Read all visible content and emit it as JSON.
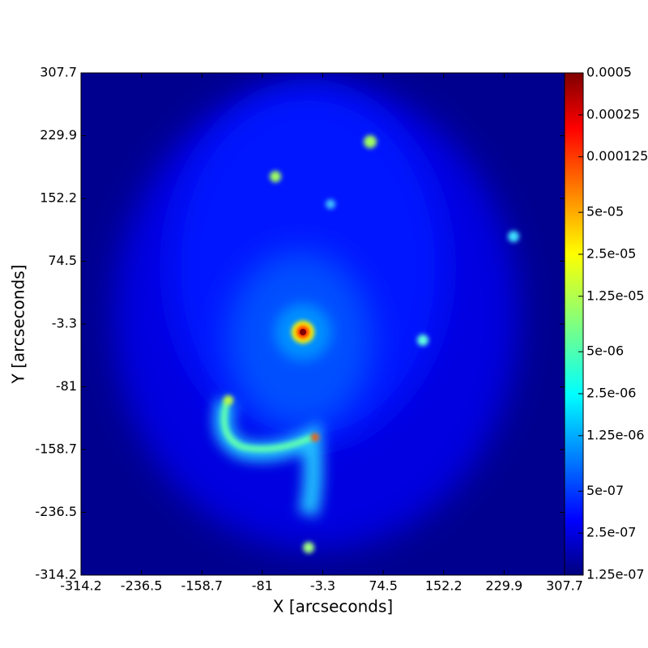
{
  "chart_data": {
    "type": "image",
    "xlabel": "X [arcseconds]",
    "ylabel": "Y [arcseconds]",
    "xlim": [
      -314.2,
      307.7
    ],
    "xticks": [
      -314.2,
      -236.5,
      -158.7,
      -81.0,
      -3.3,
      74.5,
      152.2,
      229.9,
      307.7
    ],
    "ylim": [
      -314.2,
      307.7
    ],
    "yticks": [
      -314.2,
      -236.5,
      -158.7,
      -81.0,
      -3.3,
      74.5,
      152.2,
      229.9,
      307.7
    ],
    "colorbar": {
      "scale": "log",
      "colormap": "jet",
      "lim": [
        1.25e-07,
        0.0005
      ],
      "ticks": [
        {
          "value": 1.25e-07,
          "label": "1.25e-07"
        },
        {
          "value": 2.5e-07,
          "label": "2.5e-07"
        },
        {
          "value": 5e-07,
          "label": "5e-07"
        },
        {
          "value": 1.25e-06,
          "label": "1.25e-06"
        },
        {
          "value": 2.5e-06,
          "label": "2.5e-06"
        },
        {
          "value": 5e-06,
          "label": "5e-06"
        },
        {
          "value": 1.25e-05,
          "label": "1.25e-05"
        },
        {
          "value": 2.5e-05,
          "label": "2.5e-05"
        },
        {
          "value": 5e-05,
          "label": "5e-05"
        },
        0.000125,
        0.00025,
        0.0005
      ]
    }
  }
}
